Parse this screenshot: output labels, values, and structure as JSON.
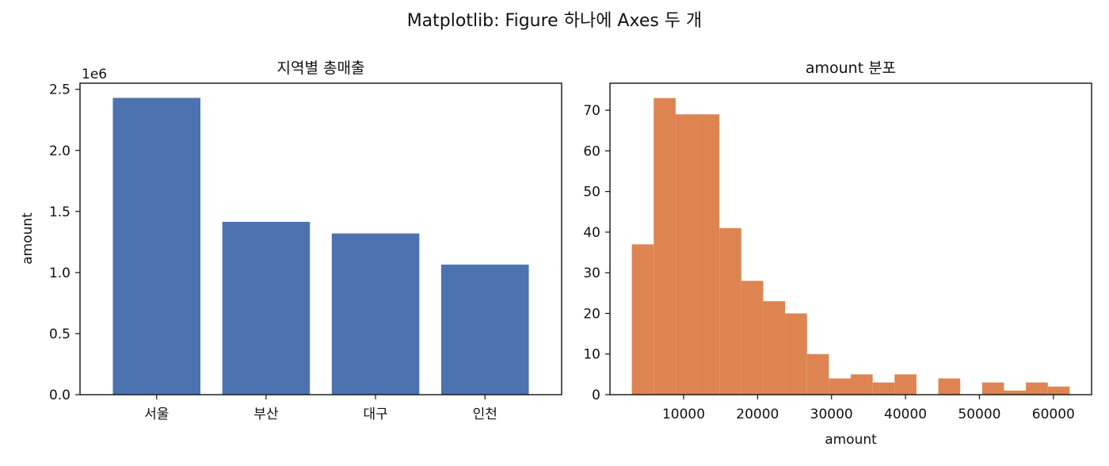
{
  "figure": {
    "suptitle": "Matplotlib: Figure 하나에 Axes 두 개"
  },
  "chart_data": [
    {
      "type": "bar",
      "title": "지역별 총매출",
      "xlabel": "",
      "ylabel": "amount",
      "offset_label": "1e6",
      "categories": [
        "서울",
        "부산",
        "대구",
        "인천"
      ],
      "values": [
        2430000,
        1415000,
        1320000,
        1065000
      ],
      "ylim": [
        0,
        2550000
      ],
      "yticks": [
        0,
        500000,
        1000000,
        1500000,
        2000000,
        2500000
      ],
      "ytick_labels": [
        "0.0",
        "0.5",
        "1.0",
        "1.5",
        "2.0",
        "2.5"
      ],
      "color": "#4c72b0",
      "grid": false
    },
    {
      "type": "histogram",
      "title": "amount 분포",
      "xlabel": "amount",
      "ylabel": "",
      "bin_edges": [
        3000,
        5960,
        8920,
        11880,
        14840,
        17800,
        20760,
        23720,
        26680,
        29640,
        32600,
        35560,
        38520,
        41480,
        44440,
        47400,
        50360,
        53320,
        56280,
        59240,
        62200
      ],
      "counts": [
        37,
        73,
        69,
        69,
        41,
        28,
        23,
        20,
        10,
        4,
        5,
        3,
        5,
        0,
        4,
        0,
        3,
        1,
        3,
        2
      ],
      "xlim": [
        40,
        65160
      ],
      "ylim": [
        0,
        76.65
      ],
      "xticks": [
        10000,
        20000,
        30000,
        40000,
        50000,
        60000
      ],
      "yticks": [
        0,
        10,
        20,
        30,
        40,
        50,
        60,
        70
      ],
      "color": "#dd8452",
      "grid": false
    }
  ]
}
